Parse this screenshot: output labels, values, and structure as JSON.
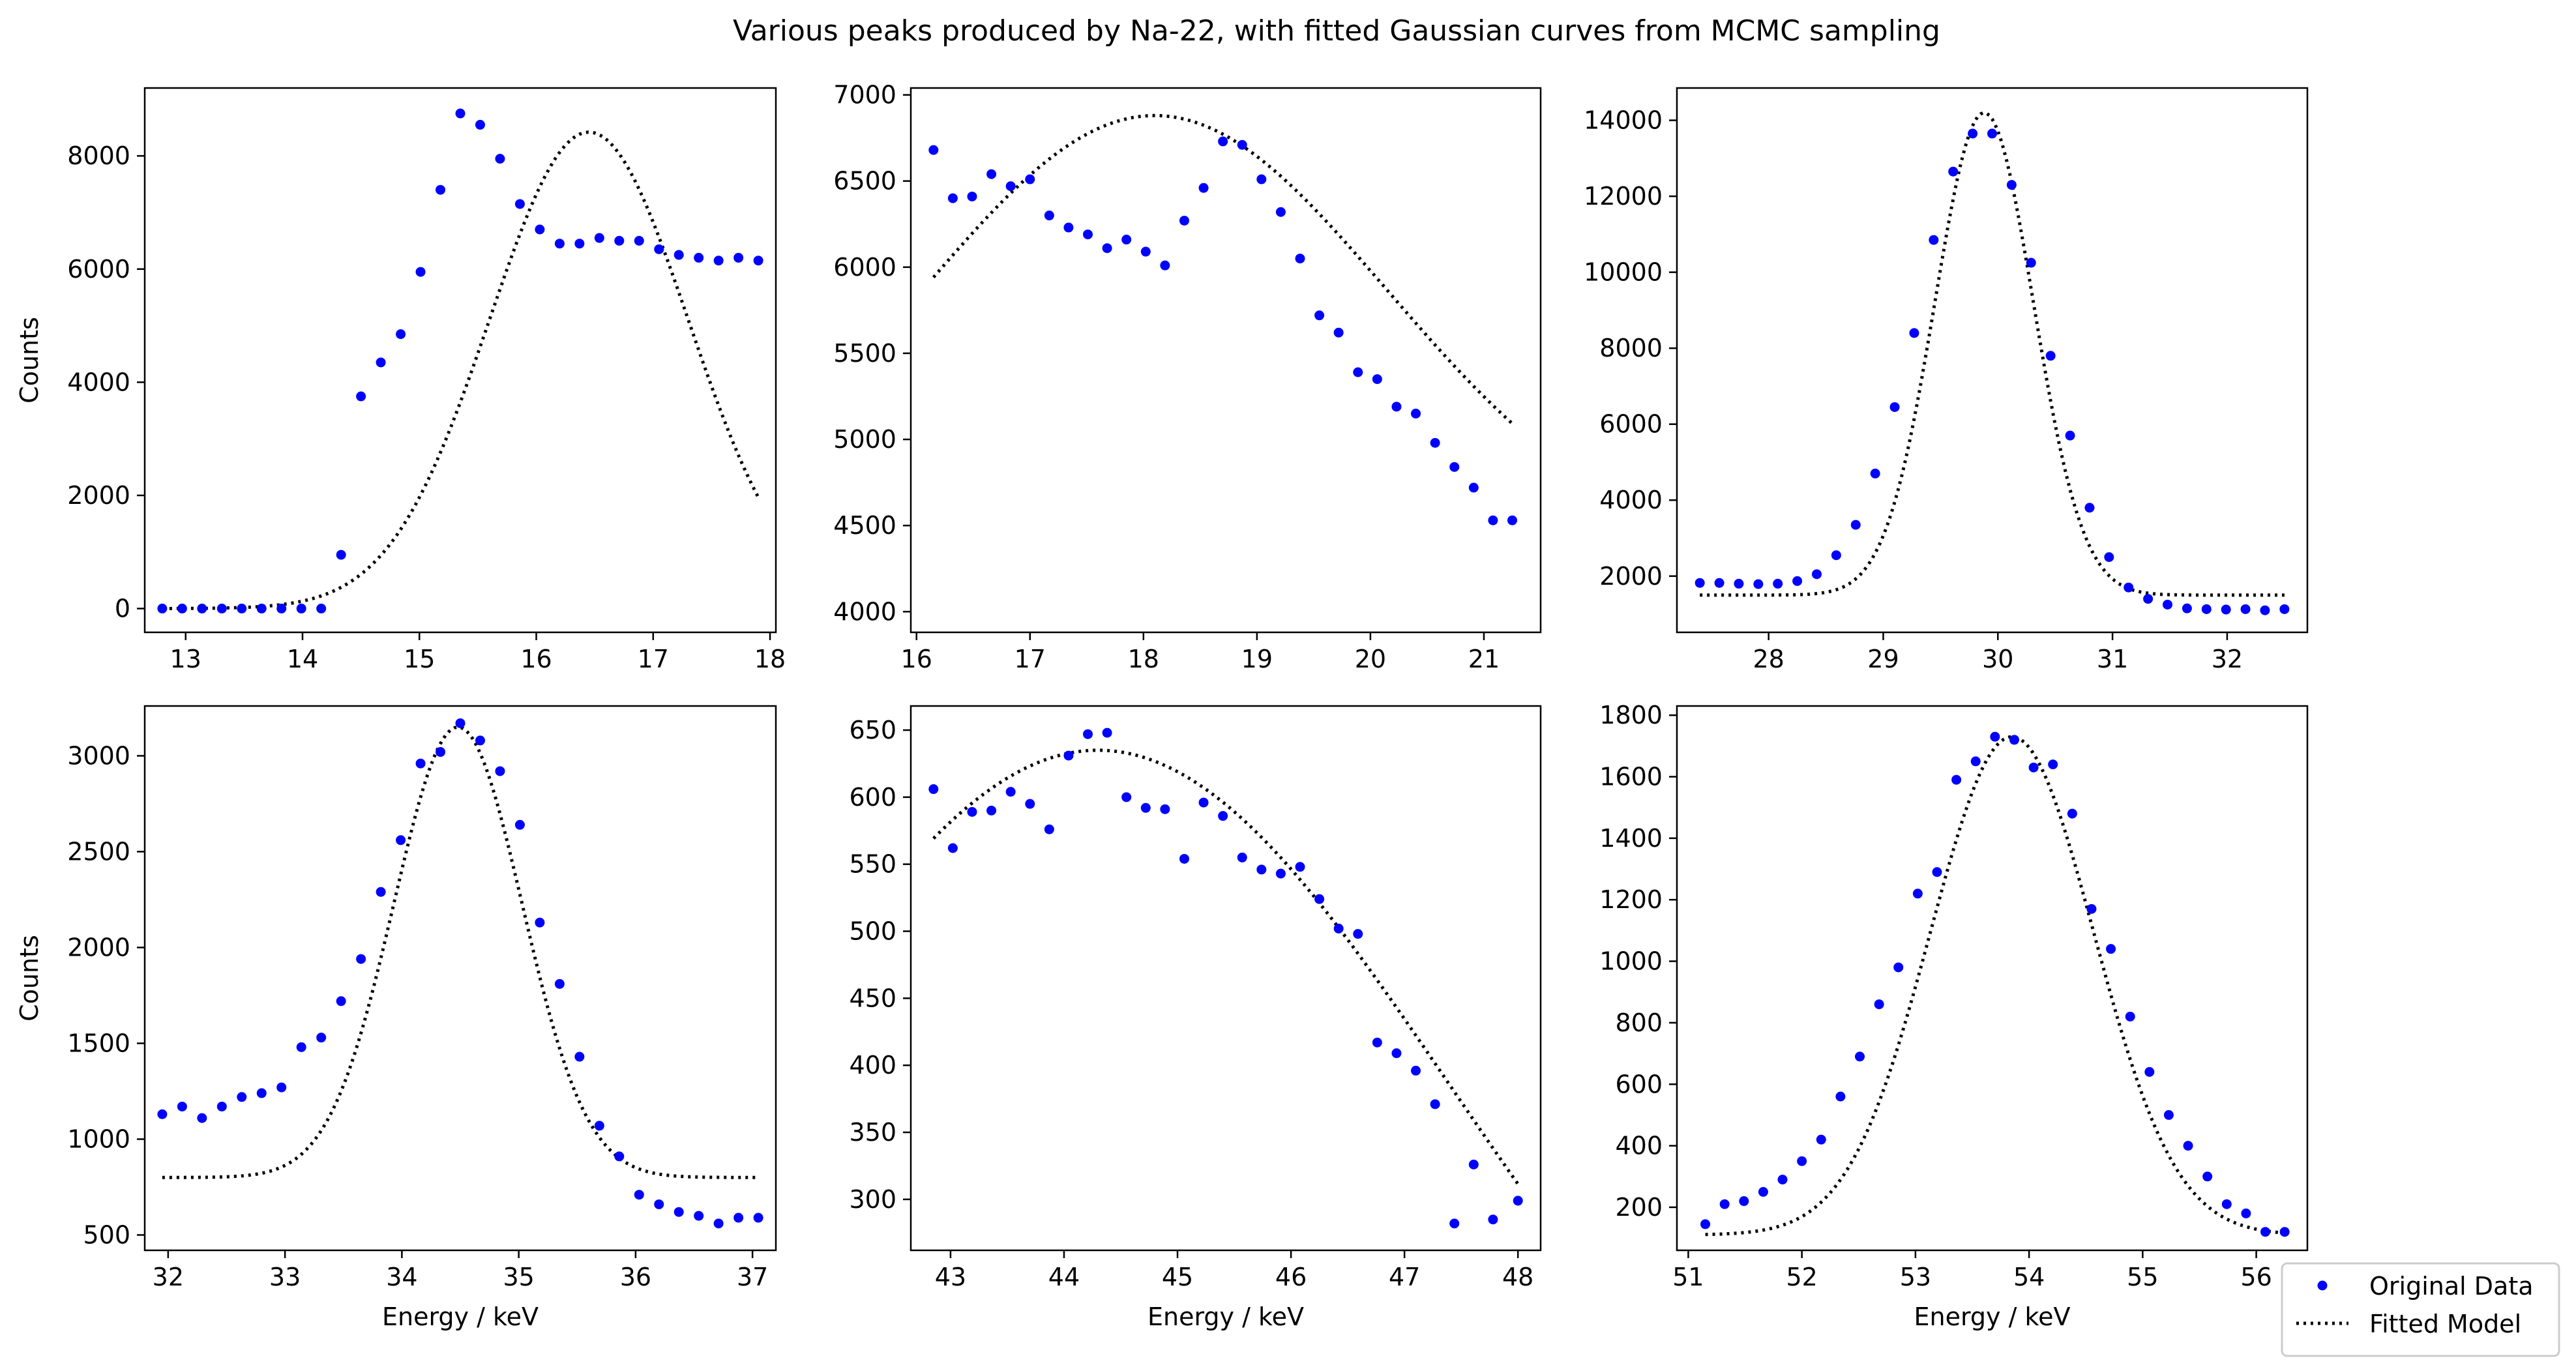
{
  "colors": {
    "data": "#0000ff",
    "model": "#000000",
    "axes": "#000000",
    "background": "#ffffff"
  },
  "chart_data": {
    "type": "scatter",
    "title": "Various peaks produced by Na-22, with fitted Gaussian curves from MCMC sampling",
    "legend": {
      "placement": "bottom-right",
      "entries": [
        {
          "label": "Original Data",
          "style": "blue dots"
        },
        {
          "label": "Fitted Model",
          "style": "black dotted line"
        }
      ]
    },
    "panels": [
      {
        "id": "p1",
        "xlabel": "",
        "ylabel": "Counts",
        "xlim": [
          12.65,
          18.05
        ],
        "ylim": [
          -420,
          9200
        ],
        "xticks": [
          13,
          14,
          15,
          16,
          17,
          18
        ],
        "yticks": [
          0,
          2000,
          4000,
          6000,
          8000
        ],
        "data": {
          "x": [
            12.8,
            12.97,
            13.14,
            13.31,
            13.48,
            13.65,
            13.82,
            13.99,
            14.16,
            14.33,
            14.5,
            14.67,
            14.84,
            15.01,
            15.18,
            15.35,
            15.52,
            15.69,
            15.86,
            16.03,
            16.2,
            16.37,
            16.54,
            16.71,
            16.88,
            17.05,
            17.22,
            17.39,
            17.56,
            17.73,
            17.9
          ],
          "y": [
            0,
            0,
            0,
            0,
            0,
            0,
            0,
            0,
            0,
            950,
            3750,
            4350,
            4850,
            5950,
            7400,
            8750,
            8550,
            7950,
            7150,
            6700,
            6450,
            6450,
            6550,
            6500,
            6500,
            6350,
            6250,
            6200,
            6150,
            6200,
            6150
          ]
        },
        "model": {
          "amp": 8420,
          "mu": 16.45,
          "sigma": 0.85,
          "base": 0,
          "xrange": [
            12.8,
            17.9
          ]
        }
      },
      {
        "id": "p2",
        "xlabel": "",
        "ylabel": "",
        "xlim": [
          15.95,
          21.5
        ],
        "ylim": [
          3880,
          7040
        ],
        "xticks": [
          16,
          17,
          18,
          19,
          20,
          21
        ],
        "yticks": [
          4000,
          4500,
          5000,
          5500,
          6000,
          6500,
          7000
        ],
        "data": {
          "x": [
            16.15,
            16.32,
            16.49,
            16.66,
            16.83,
            17.0,
            17.17,
            17.34,
            17.51,
            17.68,
            17.85,
            18.02,
            18.19,
            18.36,
            18.53,
            18.7,
            18.87,
            19.04,
            19.21,
            19.38,
            19.55,
            19.72,
            19.89,
            20.06,
            20.23,
            20.4,
            20.57,
            20.74,
            20.91,
            21.08,
            21.25
          ],
          "y": [
            6680,
            6400,
            6410,
            6540,
            6470,
            6510,
            6300,
            6230,
            6190,
            6110,
            6160,
            6090,
            6010,
            6270,
            6460,
            6730,
            6710,
            6510,
            6320,
            6050,
            5720,
            5620,
            5390,
            5350,
            5190,
            5150,
            4980,
            4840,
            4720,
            4530,
            4530
          ]
        },
        "model": {
          "amp": 2580,
          "mu": 18.1,
          "sigma": 2.05,
          "base": 4300,
          "xrange": [
            16.15,
            21.25
          ]
        }
      },
      {
        "id": "p3",
        "xlabel": "",
        "ylabel": "",
        "xlim": [
          27.2,
          32.7
        ],
        "ylim": [
          520,
          14850
        ],
        "xticks": [
          28,
          29,
          30,
          31,
          32
        ],
        "yticks": [
          2000,
          4000,
          6000,
          8000,
          10000,
          12000,
          14000
        ],
        "data": {
          "x": [
            27.4,
            27.57,
            27.74,
            27.91,
            28.08,
            28.25,
            28.42,
            28.59,
            28.76,
            28.93,
            29.1,
            29.27,
            29.44,
            29.61,
            29.78,
            29.95,
            30.12,
            30.29,
            30.46,
            30.63,
            30.8,
            30.97,
            31.14,
            31.31,
            31.48,
            31.65,
            31.82,
            31.99,
            32.16,
            32.33,
            32.5
          ],
          "y": [
            1820,
            1820,
            1800,
            1790,
            1800,
            1870,
            2050,
            2550,
            3350,
            4700,
            6450,
            8400,
            10850,
            12650,
            13650,
            13650,
            12300,
            10250,
            7800,
            5700,
            3800,
            2500,
            1700,
            1400,
            1250,
            1150,
            1130,
            1120,
            1130,
            1100,
            1130
          ]
        },
        "model": {
          "amp": 12700,
          "mu": 29.88,
          "sigma": 0.43,
          "base": 1500,
          "xrange": [
            27.4,
            32.5
          ]
        }
      },
      {
        "id": "p4",
        "xlabel": "Energy / keV",
        "ylabel": "Counts",
        "xlim": [
          31.8,
          37.2
        ],
        "ylim": [
          420,
          3260
        ],
        "xticks": [
          32,
          33,
          34,
          35,
          36,
          37
        ],
        "yticks": [
          500,
          1000,
          1500,
          2000,
          2500,
          3000
        ],
        "data": {
          "x": [
            31.95,
            32.12,
            32.29,
            32.46,
            32.63,
            32.8,
            32.97,
            33.14,
            33.31,
            33.48,
            33.65,
            33.82,
            33.99,
            34.16,
            34.33,
            34.5,
            34.67,
            34.84,
            35.01,
            35.18,
            35.35,
            35.52,
            35.69,
            35.86,
            36.03,
            36.2,
            36.37,
            36.54,
            36.71,
            36.88,
            37.05
          ],
          "y": [
            1130,
            1170,
            1110,
            1170,
            1220,
            1240,
            1270,
            1480,
            1530,
            1720,
            1940,
            2290,
            2560,
            2960,
            3020,
            3170,
            3080,
            2920,
            2640,
            2130,
            1810,
            1430,
            1070,
            910,
            710,
            660,
            620,
            600,
            560,
            590,
            590
          ]
        },
        "model": {
          "amp": 2350,
          "mu": 34.48,
          "sigma": 0.55,
          "base": 800,
          "xrange": [
            31.95,
            37.05
          ]
        }
      },
      {
        "id": "p5",
        "xlabel": "Energy / keV",
        "ylabel": "",
        "xlim": [
          42.65,
          48.2
        ],
        "ylim": [
          262,
          668
        ],
        "xticks": [
          43,
          44,
          45,
          46,
          47,
          48
        ],
        "yticks": [
          300,
          350,
          400,
          450,
          500,
          550,
          600,
          650
        ],
        "data": {
          "x": [
            42.85,
            43.02,
            43.19,
            43.36,
            43.53,
            43.7,
            43.87,
            44.04,
            44.21,
            44.38,
            44.55,
            44.72,
            44.89,
            45.06,
            45.23,
            45.4,
            45.57,
            45.74,
            45.91,
            46.08,
            46.25,
            46.42,
            46.59,
            46.76,
            46.93,
            47.1,
            47.27,
            47.44,
            47.61,
            47.78,
            48.0
          ],
          "y": [
            606,
            562,
            589,
            590,
            604,
            595,
            576,
            631,
            647,
            648,
            600,
            592,
            591,
            554,
            596,
            586,
            555,
            546,
            543,
            548,
            524,
            502,
            498,
            417,
            409,
            396,
            371,
            282,
            326,
            285,
            299
          ]
        },
        "model": {
          "amp": 635,
          "mu": 44.3,
          "sigma": 3.1,
          "base": 0,
          "xrange": [
            42.85,
            48.0
          ]
        }
      },
      {
        "id": "p6",
        "xlabel": "Energy / keV",
        "ylabel": "",
        "xlim": [
          50.9,
          56.45
        ],
        "ylim": [
          60,
          1830
        ],
        "xticks": [
          51,
          52,
          53,
          54,
          55,
          56
        ],
        "yticks": [
          200,
          400,
          600,
          800,
          1000,
          1200,
          1400,
          1600,
          1800
        ],
        "data": {
          "x": [
            51.15,
            51.32,
            51.49,
            51.66,
            51.83,
            52.0,
            52.17,
            52.34,
            52.51,
            52.68,
            52.85,
            53.02,
            53.19,
            53.36,
            53.53,
            53.7,
            53.87,
            54.04,
            54.21,
            54.38,
            54.55,
            54.72,
            54.89,
            55.06,
            55.23,
            55.4,
            55.57,
            55.74,
            55.91,
            56.08,
            56.25
          ],
          "y": [
            145,
            210,
            220,
            250,
            290,
            350,
            420,
            560,
            690,
            860,
            980,
            1220,
            1290,
            1590,
            1650,
            1730,
            1720,
            1630,
            1640,
            1480,
            1170,
            1040,
            820,
            640,
            500,
            400,
            300,
            210,
            180,
            120,
            120
          ]
        },
        "model": {
          "amp": 1620,
          "mu": 53.85,
          "sigma": 0.72,
          "base": 110,
          "xrange": [
            51.15,
            56.25
          ]
        }
      }
    ]
  }
}
